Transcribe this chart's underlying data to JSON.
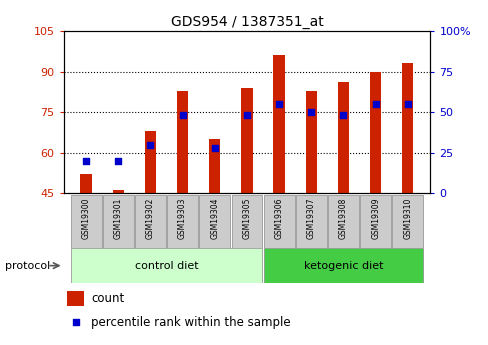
{
  "title": "GDS954 / 1387351_at",
  "samples": [
    "GSM19300",
    "GSM19301",
    "GSM19302",
    "GSM19303",
    "GSM19304",
    "GSM19305",
    "GSM19306",
    "GSM19307",
    "GSM19308",
    "GSM19309",
    "GSM19310"
  ],
  "counts": [
    52,
    46,
    68,
    83,
    65,
    84,
    96,
    83,
    86,
    90,
    93
  ],
  "percentile_ranks": [
    20,
    20,
    30,
    48,
    28,
    48,
    55,
    50,
    48,
    55,
    55
  ],
  "bar_bottom": 45,
  "left_ylim": [
    45,
    105
  ],
  "left_yticks": [
    45,
    60,
    75,
    90,
    105
  ],
  "right_ylim": [
    0,
    100
  ],
  "right_yticks": [
    0,
    25,
    50,
    75,
    100
  ],
  "right_yticklabels": [
    "0",
    "25",
    "50",
    "75",
    "100%"
  ],
  "bar_color": "#cc2200",
  "dot_color": "#0000cc",
  "control_label": "control diet",
  "ketogenic_label": "ketogenic diet",
  "protocol_label": "protocol",
  "group_bg_light": "#ccffcc",
  "group_bg_dark": "#44cc44",
  "tick_color_left": "#cc2200",
  "tick_color_right": "#0000cc",
  "sample_bg_color": "#cccccc",
  "bar_width": 0.35,
  "figsize": [
    4.89,
    3.45
  ],
  "dpi": 100
}
